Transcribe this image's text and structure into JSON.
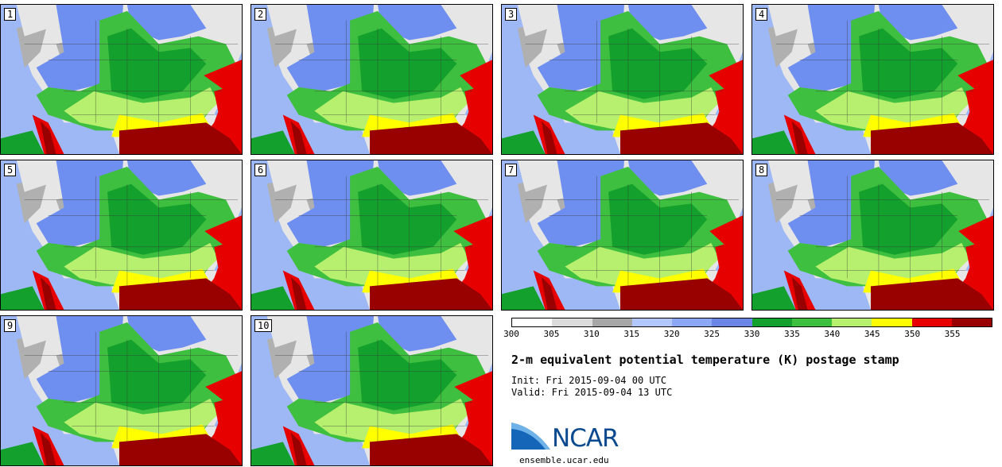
{
  "title": "2-m equivalent potential temperature (K) postage stamp",
  "init": "Init: Fri 2015-09-04 00 UTC",
  "valid": "Valid: Fri 2015-09-04 13 UTC",
  "logo_text": "NCAR",
  "site": "ensemble.ucar.edu",
  "members": [
    "1",
    "2",
    "3",
    "4",
    "5",
    "6",
    "7",
    "8",
    "9",
    "10"
  ],
  "colorbar": {
    "ticks": [
      "300",
      "305",
      "310",
      "315",
      "320",
      "325",
      "330",
      "335",
      "340",
      "345",
      "350",
      "355"
    ],
    "colors": [
      "#ffffff",
      "#dcdcdc",
      "#a6a6a6",
      "#b3c7ff",
      "#8ca8f5",
      "#6a85e6",
      "#14a02c",
      "#3fbf3f",
      "#b7ef6e",
      "#ffff00",
      "#e60000",
      "#990000"
    ]
  },
  "colors": {
    "land_cold": "#e6e6e6",
    "land_gray": "#b0b0b0",
    "ocean_cold": "#9db8f5",
    "blue": "#6f8ff0",
    "green_dark": "#14a02c",
    "green": "#3fbf3f",
    "green_light": "#b7ef6e",
    "yellow": "#ffff00",
    "red": "#e60000",
    "dark_red": "#990000"
  }
}
